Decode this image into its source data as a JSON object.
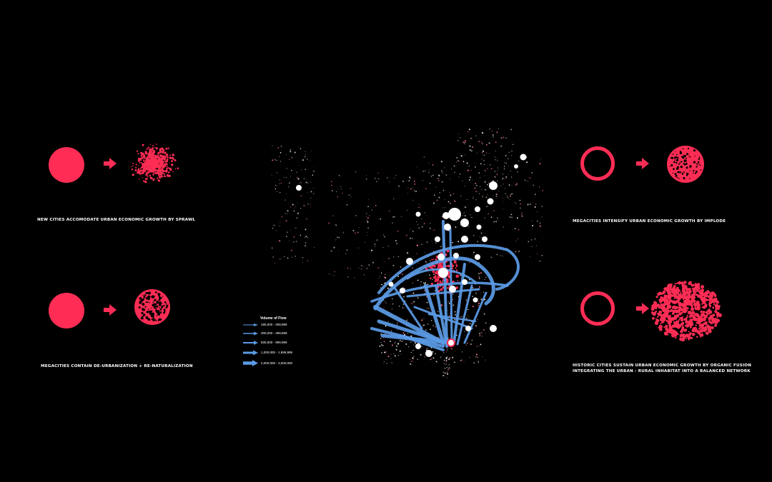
{
  "colors": {
    "accent": "#ff2d55",
    "flow": "#5b9be6",
    "background": "#000000",
    "city": "#ffffff"
  },
  "panels": {
    "top_left": {
      "caption": "NEW CITIES ACCOMODATE URBAN ECONOMIC GROWTH BY SPRAWL",
      "from_icon": "solid-circle",
      "to_icon": "sprawl-cloud"
    },
    "bottom_left": {
      "caption": "MEGACITIES CONTAIN DE-URBANIZATION + RE-NATURALIZATION",
      "from_icon": "solid-circle",
      "to_icon": "perforated-circle"
    },
    "top_right": {
      "caption": "MEGACITIES INTENSIFY URBAN ECONOMIC GROWTH BY IMPLODE",
      "from_icon": "ring",
      "to_icon": "dense-perforated-circle"
    },
    "bottom_right": {
      "caption_line1": "HISTORIC CITIES SUSTAIN URBAN ECONOMIC GROWTH BY ORGANIC FUSION",
      "caption_line2": "INTEGRATING THE URBAN - RURAL INHABITAT INTO A BALANCED NETWORK",
      "from_icon": "ring",
      "to_icon": "fused-cloud"
    }
  },
  "legend": {
    "title": "Volume of Flow",
    "items": [
      {
        "label": "180,000 - 299,999",
        "weight": 1
      },
      {
        "label": "300,000 - 499,999",
        "weight": 2
      },
      {
        "label": "500,000 - 999,999",
        "weight": 3
      },
      {
        "label": "1,000,000 - 1,999,999",
        "weight": 4
      },
      {
        "label": "2,000,000 - 3,000,000",
        "weight": 5
      }
    ]
  }
}
